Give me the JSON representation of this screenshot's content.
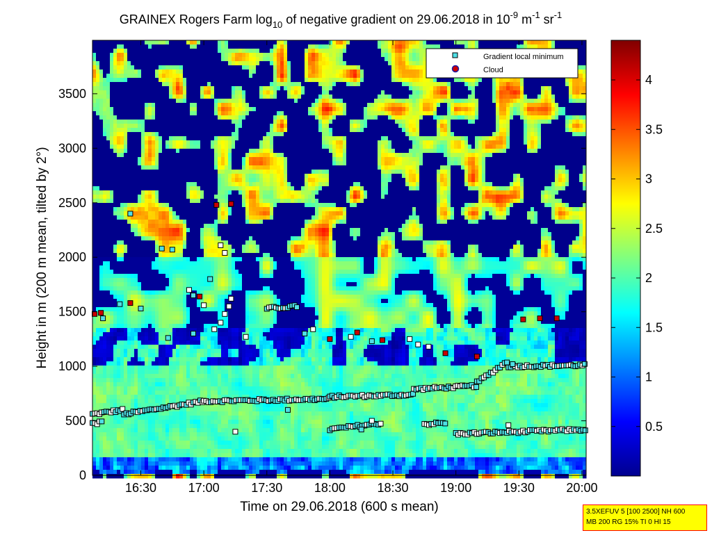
{
  "chart_data": {
    "type": "heatmap",
    "title": {
      "prefix": "GRAINEX Rogers Farm log",
      "sub": "10",
      "mid": " of negative gradient on 29.06.2018 in 10",
      "sup1": "-9",
      "unit1": " m",
      "sup2": "-1",
      "unit2": " sr",
      "sup3": "-1"
    },
    "xlabel": "Time on 29.06.2018 (600 s mean)",
    "ylabel": "Height in m (200 m mean, tilted by 2°)",
    "xlim": [
      "16:07",
      "20:02"
    ],
    "ylim": [
      0,
      3990
    ],
    "x_ticks": [
      "16:30",
      "17:00",
      "17:30",
      "18:00",
      "18:30",
      "19:00",
      "19:30",
      "20:00"
    ],
    "y_ticks": [
      0,
      500,
      1000,
      1500,
      2000,
      2500,
      3000,
      3500
    ],
    "colorbar": {
      "colormap": "jet",
      "range": [
        0,
        4.4
      ],
      "ticks": [
        "0.5",
        "1",
        "1.5",
        "2",
        "2.5",
        "3",
        "3.5",
        "4"
      ]
    },
    "legend": {
      "placement": "top-right",
      "entries": [
        {
          "label": "Gradient local minimum",
          "marker": "square",
          "color": "#4fe0e6"
        },
        {
          "label": "Cloud",
          "marker": "circle",
          "color": "#cc0000",
          "edge": "#1a1aa8"
        }
      ]
    },
    "gradient_minimum_layers": [
      {
        "t0": "16:07",
        "t1": "16:22",
        "h0": 560,
        "h1": 600
      },
      {
        "t0": "16:22",
        "t1": "17:00",
        "h0": 560,
        "h1": 680
      },
      {
        "t0": "17:00",
        "t1": "18:00",
        "h0": 680,
        "h1": 700
      },
      {
        "t0": "18:00",
        "t1": "18:40",
        "h0": 720,
        "h1": 740
      },
      {
        "t0": "18:40",
        "t1": "19:10",
        "h0": 790,
        "h1": 820
      },
      {
        "t0": "19:10",
        "t1": "19:25",
        "h0": 850,
        "h1": 1050
      },
      {
        "t0": "19:25",
        "t1": "20:02",
        "h0": 1000,
        "h1": 1010
      },
      {
        "t0": "17:30",
        "t1": "17:45",
        "h0": 1530,
        "h1": 1550
      },
      {
        "t0": "18:00",
        "t1": "18:25",
        "h0": 420,
        "h1": 480
      },
      {
        "t0": "18:45",
        "t1": "18:55",
        "h0": 470,
        "h1": 480
      },
      {
        "t0": "19:00",
        "t1": "20:02",
        "h0": 380,
        "h1": 420
      },
      {
        "t0": "16:07",
        "t1": "16:12",
        "h0": 470,
        "h1": 490
      }
    ],
    "cloud_points": [
      {
        "t": "16:08",
        "h": 1480
      },
      {
        "t": "16:11",
        "h": 1490
      },
      {
        "t": "16:25",
        "h": 1580
      },
      {
        "t": "16:58",
        "h": 1640
      },
      {
        "t": "17:06",
        "h": 2480
      },
      {
        "t": "17:13",
        "h": 2490
      },
      {
        "t": "18:00",
        "h": 1250
      },
      {
        "t": "18:13",
        "h": 1310
      },
      {
        "t": "18:25",
        "h": 1240
      },
      {
        "t": "18:55",
        "h": 1120
      },
      {
        "t": "19:10",
        "h": 1090
      },
      {
        "t": "19:32",
        "h": 1430
      },
      {
        "t": "19:40",
        "h": 1440
      },
      {
        "t": "19:48",
        "h": 1440
      }
    ],
    "scatter_minima": [
      {
        "t": "16:25",
        "h": 2400
      },
      {
        "t": "16:40",
        "h": 2080
      },
      {
        "t": "16:45",
        "h": 2070
      },
      {
        "t": "17:08",
        "h": 2110
      },
      {
        "t": "17:10",
        "h": 2040
      },
      {
        "t": "17:03",
        "h": 1800
      },
      {
        "t": "16:53",
        "h": 1700
      },
      {
        "t": "16:55",
        "h": 1650
      },
      {
        "t": "17:00",
        "h": 1560
      },
      {
        "t": "17:13",
        "h": 1620
      },
      {
        "t": "17:12",
        "h": 1550
      },
      {
        "t": "17:10",
        "h": 1480
      },
      {
        "t": "17:08",
        "h": 1400
      },
      {
        "t": "17:05",
        "h": 1340
      },
      {
        "t": "17:20",
        "h": 1270
      },
      {
        "t": "16:43",
        "h": 1260
      },
      {
        "t": "16:55",
        "h": 1300
      },
      {
        "t": "16:20",
        "h": 1570
      },
      {
        "t": "16:30",
        "h": 1530
      },
      {
        "t": "16:12",
        "h": 1440
      },
      {
        "t": "17:15",
        "h": 400
      },
      {
        "t": "17:40",
        "h": 600
      },
      {
        "t": "17:52",
        "h": 1340
      },
      {
        "t": "17:48",
        "h": 1300
      },
      {
        "t": "18:10",
        "h": 1270
      },
      {
        "t": "18:20",
        "h": 1230
      },
      {
        "t": "18:38",
        "h": 1250
      },
      {
        "t": "18:42",
        "h": 1200
      },
      {
        "t": "18:47",
        "h": 1180
      },
      {
        "t": "19:27",
        "h": 1020
      },
      {
        "t": "19:25",
        "h": 460
      },
      {
        "t": "18:20",
        "h": 500
      },
      {
        "t": "18:15",
        "h": 420
      }
    ],
    "field": {
      "layers": [
        {
          "name": "surface",
          "h": [
            0,
            170
          ],
          "value": 1.3,
          "noise": 0.5
        },
        {
          "name": "boundary-layer",
          "h": [
            170,
            1000
          ],
          "value": 2.0,
          "noise": 0.25
        },
        {
          "name": "entrainment",
          "h": [
            1000,
            1350
          ],
          "value": 1.2,
          "noise": 0.9
        },
        {
          "name": "lower-free-troposphere",
          "h": [
            1350,
            2000
          ],
          "value": 1.6,
          "noise": 0.8
        },
        {
          "name": "upper",
          "h": [
            2000,
            3990
          ],
          "value": 1.6,
          "noise": 1.6
        }
      ]
    }
  },
  "info_box": {
    "line1": "3.5XEFUV 5 [100 2500] NH 600",
    "line2": "MB 200 RG 15% TI 0 HI 15"
  }
}
